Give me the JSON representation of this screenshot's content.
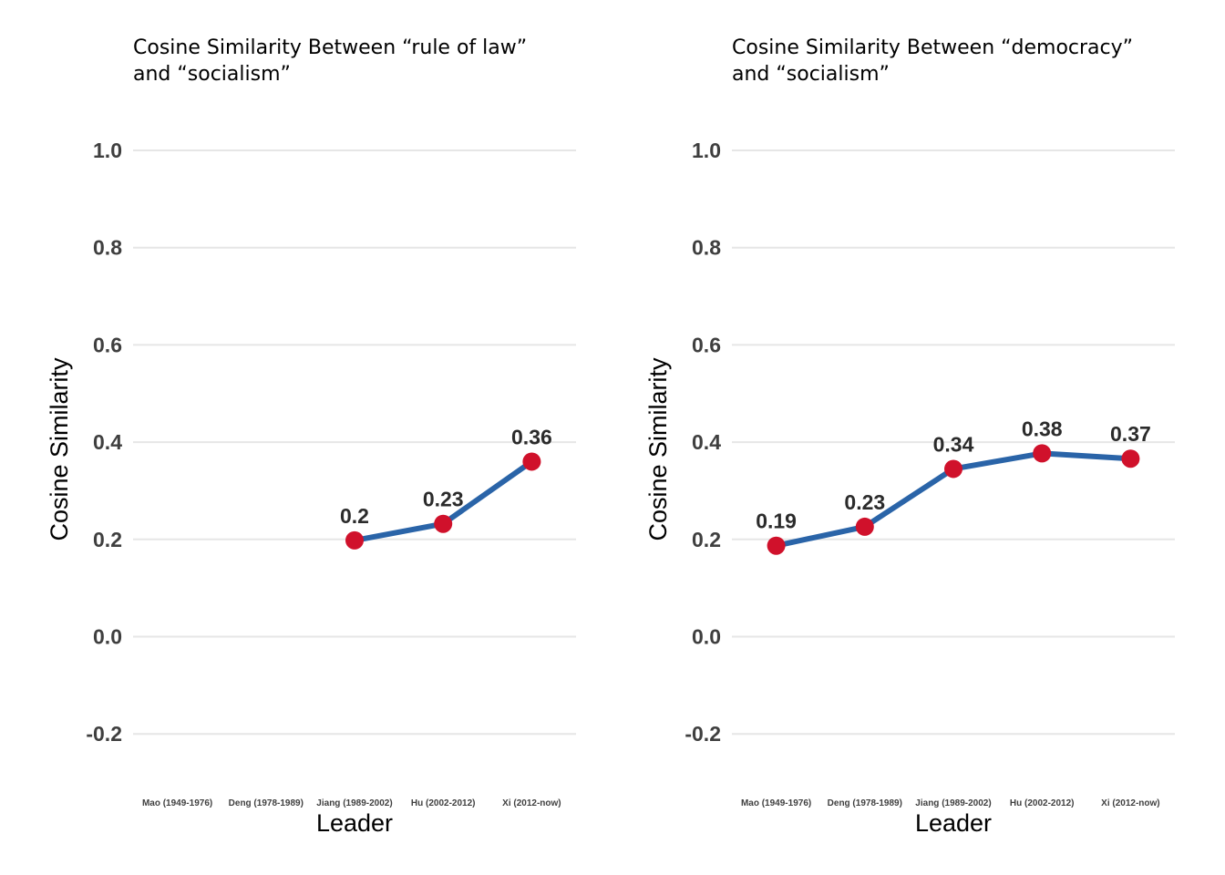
{
  "colors": {
    "line": "#2a64a8",
    "point": "#d0112b",
    "grid": "#e6e6e6"
  },
  "chart_data": [
    {
      "type": "line",
      "title_lines": [
        "Cosine Similarity Between “rule of law”",
        "and “socialism”"
      ],
      "xlabel": "Leader",
      "ylabel": "Cosine Similarity",
      "categories": [
        "Mao (1949-1976)",
        "Deng (1978-1989)",
        "Jiang (1989-2002)",
        "Hu (2002-2012)",
        "Xi (2012-now)"
      ],
      "yticks": [
        1.0,
        0.8,
        0.6,
        0.4,
        0.2,
        0.0,
        -0.2
      ],
      "ytick_labels": [
        "1.0",
        "0.8",
        "0.6",
        "0.4",
        "0.2",
        "0.0",
        "-0.2"
      ],
      "ylim": [
        -0.3,
        1.0
      ],
      "grid": true,
      "values": [
        null,
        null,
        0.198,
        0.232,
        0.36
      ],
      "data_labels": [
        "",
        "",
        "0.2",
        "0.23",
        "0.36"
      ]
    },
    {
      "type": "line",
      "title_lines": [
        "Cosine Similarity Between “democracy”",
        "and “socialism”"
      ],
      "xlabel": "Leader",
      "ylabel": "Cosine Similarity",
      "categories": [
        "Mao (1949-1976)",
        "Deng (1978-1989)",
        "Jiang (1989-2002)",
        "Hu (2002-2012)",
        "Xi (2012-now)"
      ],
      "yticks": [
        1.0,
        0.8,
        0.6,
        0.4,
        0.2,
        0.0,
        -0.2
      ],
      "ytick_labels": [
        "1.0",
        "0.8",
        "0.6",
        "0.4",
        "0.2",
        "0.0",
        "-0.2"
      ],
      "ylim": [
        -0.3,
        1.0
      ],
      "grid": true,
      "values": [
        0.187,
        0.226,
        0.345,
        0.377,
        0.366
      ],
      "data_labels": [
        "0.19",
        "0.23",
        "0.34",
        "0.38",
        "0.37"
      ]
    }
  ]
}
